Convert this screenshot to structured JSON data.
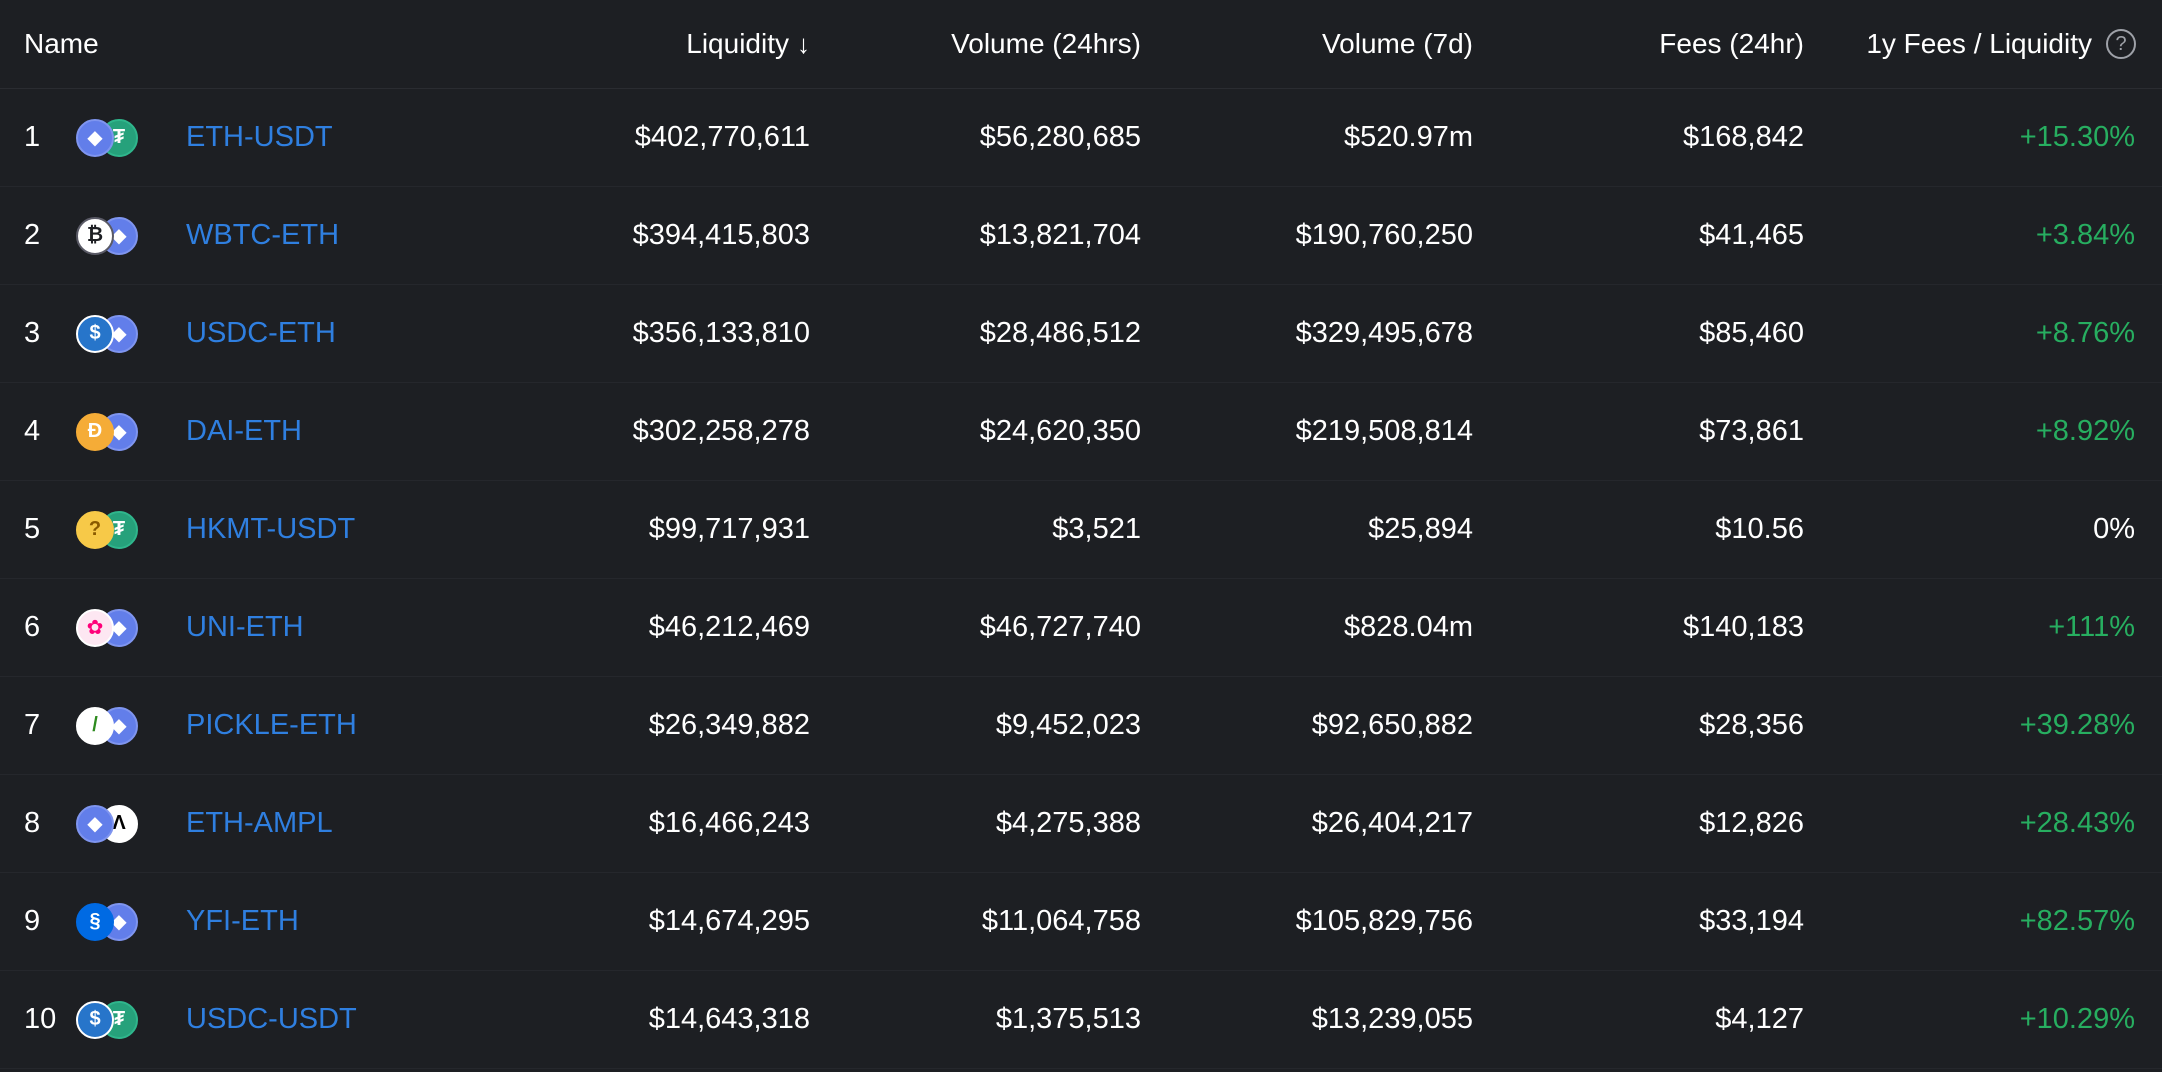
{
  "header": {
    "name": "Name",
    "liquidity": "Liquidity",
    "sort_arrow": "↓",
    "volume_24h": "Volume (24hrs)",
    "volume_7d": "Volume (7d)",
    "fees_24h": "Fees (24hr)",
    "fees_liquidity": "1y Fees / Liquidity",
    "help_glyph": "?"
  },
  "colors": {
    "background": "#1d1f23",
    "pair_link": "#2f7fe0",
    "positive": "#27ae60",
    "eth": "#627eea",
    "usdt": "#26a17b",
    "usdc": "#2775ca",
    "dai": "#f5ac37"
  },
  "rows": [
    {
      "rank": "1",
      "pair": "ETH-USDT",
      "liquidity": "$402,770,611",
      "volume_24h": "$56,280,685",
      "volume_7d": "$520.97m",
      "fees_24h": "$168,842",
      "fees_liquidity": "+15.30%",
      "token_icons": [
        "eth-icon",
        "usdt-icon"
      ]
    },
    {
      "rank": "2",
      "pair": "WBTC-ETH",
      "liquidity": "$394,415,803",
      "volume_24h": "$13,821,704",
      "volume_7d": "$190,760,250",
      "fees_24h": "$41,465",
      "fees_liquidity": "+3.84%",
      "token_icons": [
        "wbtc-icon",
        "eth-icon"
      ]
    },
    {
      "rank": "3",
      "pair": "USDC-ETH",
      "liquidity": "$356,133,810",
      "volume_24h": "$28,486,512",
      "volume_7d": "$329,495,678",
      "fees_24h": "$85,460",
      "fees_liquidity": "+8.76%",
      "token_icons": [
        "usdc-icon",
        "eth-icon"
      ]
    },
    {
      "rank": "4",
      "pair": "DAI-ETH",
      "liquidity": "$302,258,278",
      "volume_24h": "$24,620,350",
      "volume_7d": "$219,508,814",
      "fees_24h": "$73,861",
      "fees_liquidity": "+8.92%",
      "token_icons": [
        "dai-icon",
        "eth-icon"
      ]
    },
    {
      "rank": "5",
      "pair": "HKMT-USDT",
      "liquidity": "$99,717,931",
      "volume_24h": "$3,521",
      "volume_7d": "$25,894",
      "fees_24h": "$10.56",
      "fees_liquidity": "0%",
      "token_icons": [
        "thinking-face-icon",
        "usdt-icon"
      ]
    },
    {
      "rank": "6",
      "pair": "UNI-ETH",
      "liquidity": "$46,212,469",
      "volume_24h": "$46,727,740",
      "volume_7d": "$828.04m",
      "fees_24h": "$140,183",
      "fees_liquidity": "+111%",
      "token_icons": [
        "uni-icon",
        "eth-icon"
      ]
    },
    {
      "rank": "7",
      "pair": "PICKLE-ETH",
      "liquidity": "$26,349,882",
      "volume_24h": "$9,452,023",
      "volume_7d": "$92,650,882",
      "fees_24h": "$28,356",
      "fees_liquidity": "+39.28%",
      "token_icons": [
        "pickle-icon",
        "eth-icon"
      ]
    },
    {
      "rank": "8",
      "pair": "ETH-AMPL",
      "liquidity": "$16,466,243",
      "volume_24h": "$4,275,388",
      "volume_7d": "$26,404,217",
      "fees_24h": "$12,826",
      "fees_liquidity": "+28.43%",
      "token_icons": [
        "eth-icon",
        "ampl-icon"
      ]
    },
    {
      "rank": "9",
      "pair": "YFI-ETH",
      "liquidity": "$14,674,295",
      "volume_24h": "$11,064,758",
      "volume_7d": "$105,829,756",
      "fees_24h": "$33,194",
      "fees_liquidity": "+82.57%",
      "token_icons": [
        "yfi-icon",
        "eth-icon"
      ]
    },
    {
      "rank": "10",
      "pair": "USDC-USDT",
      "liquidity": "$14,643,318",
      "volume_24h": "$1,375,513",
      "volume_7d": "$13,239,055",
      "fees_24h": "$4,127",
      "fees_liquidity": "+10.29%",
      "token_icons": [
        "usdc-icon",
        "usdt-icon"
      ]
    }
  ]
}
